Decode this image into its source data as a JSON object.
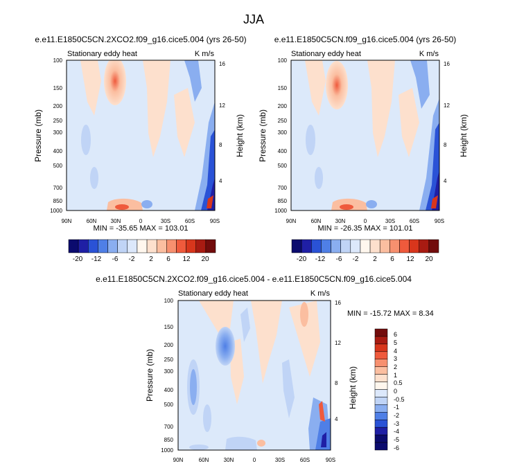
{
  "figure": {
    "title": "JJA"
  },
  "chart_data": [
    {
      "type": "contour",
      "name": "panel-left",
      "title": "e.e11.E1850C5CN.2XCO2.f09_g16.cice5.004 (yrs 26-50)",
      "subtitle_left": "Stationary eddy heat",
      "subtitle_right": "K m/s",
      "xlabel": "",
      "ylabel": "Pressure (mb)",
      "ylabel_right": "Height (km)",
      "x_ticks": [
        "90N",
        "60N",
        "30N",
        "0",
        "30S",
        "60S",
        "90S"
      ],
      "y_ticks": [
        "100",
        "150",
        "200",
        "250",
        "300",
        "400",
        "500",
        "700",
        "850",
        "1000"
      ],
      "y_values": [
        100,
        150,
        200,
        250,
        300,
        400,
        500,
        700,
        850,
        1000
      ],
      "height_ticks": [
        "16",
        "12",
        "8",
        "4"
      ],
      "height_values": [
        16,
        12,
        8,
        4
      ],
      "stats": "MIN = -35.65  MAX = 103.01",
      "min": -35.65,
      "max": 103.01,
      "colorbar_labels": [
        "-20",
        "-12",
        "-6",
        "-2",
        "2",
        "6",
        "12",
        "20"
      ]
    },
    {
      "type": "contour",
      "name": "panel-right",
      "title": "e.e11.E1850C5CN.f09_g16.cice5.004 (yrs 26-50)",
      "subtitle_left": "Stationary eddy heat",
      "subtitle_right": "K m/s",
      "xlabel": "",
      "ylabel": "Pressure (mb)",
      "ylabel_right": "Height (km)",
      "x_ticks": [
        "90N",
        "60N",
        "30N",
        "0",
        "30S",
        "60S",
        "90S"
      ],
      "y_ticks": [
        "100",
        "150",
        "200",
        "250",
        "300",
        "400",
        "500",
        "700",
        "850",
        "1000"
      ],
      "y_values": [
        100,
        150,
        200,
        250,
        300,
        400,
        500,
        700,
        850,
        1000
      ],
      "height_ticks": [
        "16",
        "12",
        "8",
        "4"
      ],
      "height_values": [
        16,
        12,
        8,
        4
      ],
      "stats": "MIN = -26.35  MAX = 101.01",
      "min": -26.35,
      "max": 101.01,
      "colorbar_labels": [
        "-20",
        "-12",
        "-6",
        "-2",
        "2",
        "6",
        "12",
        "20"
      ]
    },
    {
      "type": "contour",
      "name": "panel-diff",
      "title": "e.e11.E1850C5CN.2XCO2.f09_g16.cice5.004 - e.e11.E1850C5CN.f09_g16.cice5.004",
      "subtitle_left": "Stationary eddy heat",
      "subtitle_right": "K m/s",
      "xlabel": "",
      "ylabel": "Pressure (mb)",
      "ylabel_right": "Height (km)",
      "x_ticks": [
        "90N",
        "60N",
        "30N",
        "0",
        "30S",
        "60S",
        "90S"
      ],
      "y_ticks": [
        "100",
        "150",
        "200",
        "250",
        "300",
        "400",
        "500",
        "700",
        "850",
        "1000"
      ],
      "y_values": [
        100,
        150,
        200,
        250,
        300,
        400,
        500,
        700,
        850,
        1000
      ],
      "height_ticks": [
        "16",
        "12",
        "8",
        "4"
      ],
      "height_values": [
        16,
        12,
        8,
        4
      ],
      "stats": "MIN = -15.72  MAX =   8.34",
      "min": -15.72,
      "max": 8.34,
      "colorbar_labels": [
        "6",
        "5",
        "4",
        "3",
        "2",
        "1",
        "0.5",
        "0",
        "-0.5",
        "-1",
        "-2",
        "-3",
        "-4",
        "-5",
        "-6"
      ]
    }
  ],
  "colors": {
    "scale_hv": [
      "#0b0b6e",
      "#1f1fa5",
      "#2a52d6",
      "#4f7fe6",
      "#8aaef0",
      "#c0d4f6",
      "#dce8fb",
      "#fff7ee",
      "#fde0cd",
      "#fbbea0",
      "#f7906f",
      "#ef5a3c",
      "#d8361c",
      "#a81b12",
      "#720c0c"
    ],
    "bg_neutral": "#dce9fa"
  }
}
